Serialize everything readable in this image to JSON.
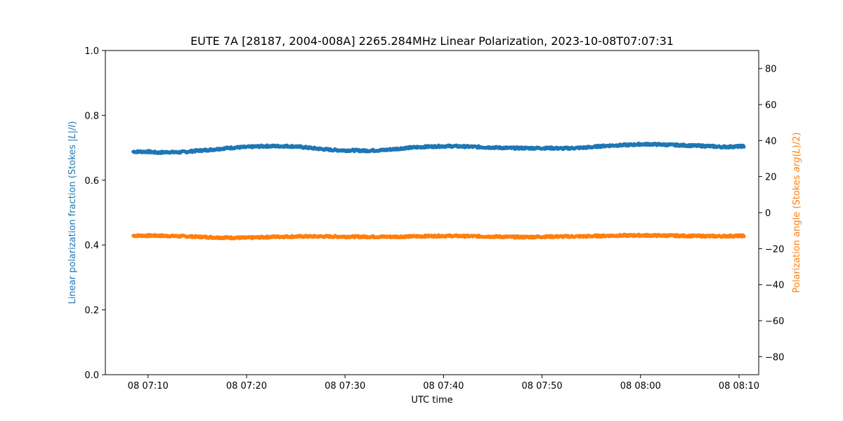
{
  "chart_data": {
    "type": "scatter",
    "title": "EUTE 7A [28187, 2004-008A] 2265.284MHz Linear Polarization, 2023-10-08T07:07:31",
    "xlabel": "UTC time",
    "ylabel_left": {
      "text": "Linear polarization fraction (Stokes |",
      "italic": "L",
      "suffix": "|/",
      "italic2": "I",
      "tail": ")"
    },
    "ylabel_right": {
      "text": "Polarization angle (Stokes ",
      "italic": "arg",
      "suffix": "(",
      "italic2": "L",
      "tail": ")/2)"
    },
    "x_range": [
      "2023-10-08T07:05:40",
      "2023-10-08T08:12:00"
    ],
    "x_ticks": [
      {
        "label": "08 07:10",
        "time": "2023-10-08T07:10:00"
      },
      {
        "label": "08 07:20",
        "time": "2023-10-08T07:20:00"
      },
      {
        "label": "08 07:30",
        "time": "2023-10-08T07:30:00"
      },
      {
        "label": "08 07:40",
        "time": "2023-10-08T07:40:00"
      },
      {
        "label": "08 07:50",
        "time": "2023-10-08T07:50:00"
      },
      {
        "label": "08 08:00",
        "time": "2023-10-08T08:00:00"
      },
      {
        "label": "08 08:10",
        "time": "2023-10-08T08:10:00"
      }
    ],
    "y_left_range": [
      0.0,
      1.0
    ],
    "y_left_ticks": [
      "0.0",
      "0.2",
      "0.4",
      "0.6",
      "0.8",
      "1.0"
    ],
    "y_right_range": [
      -90,
      90
    ],
    "y_right_ticks": [
      "−80",
      "−60",
      "−40",
      "−20",
      "0",
      "20",
      "40",
      "60",
      "80"
    ],
    "grid": false,
    "series": [
      {
        "axis": "left",
        "color": "#1f77b4",
        "points": [
          [
            "2023-10-08T07:08:30",
            0.688
          ],
          [
            "2023-10-08T07:10:00",
            0.688
          ],
          [
            "2023-10-08T07:11:00",
            0.685
          ],
          [
            "2023-10-08T07:12:00",
            0.687
          ],
          [
            "2023-10-08T07:13:00",
            0.686
          ],
          [
            "2023-10-08T07:14:00",
            0.688
          ],
          [
            "2023-10-08T07:15:00",
            0.691
          ],
          [
            "2023-10-08T07:16:00",
            0.693
          ],
          [
            "2023-10-08T07:17:00",
            0.696
          ],
          [
            "2023-10-08T07:18:00",
            0.699
          ],
          [
            "2023-10-08T07:19:00",
            0.701
          ],
          [
            "2023-10-08T07:20:00",
            0.702
          ],
          [
            "2023-10-08T07:21:00",
            0.704
          ],
          [
            "2023-10-08T07:22:00",
            0.705
          ],
          [
            "2023-10-08T07:23:00",
            0.705
          ],
          [
            "2023-10-08T07:24:00",
            0.705
          ],
          [
            "2023-10-08T07:25:00",
            0.704
          ],
          [
            "2023-10-08T07:26:00",
            0.701
          ],
          [
            "2023-10-08T07:27:00",
            0.698
          ],
          [
            "2023-10-08T07:28:00",
            0.695
          ],
          [
            "2023-10-08T07:29:00",
            0.693
          ],
          [
            "2023-10-08T07:30:00",
            0.692
          ],
          [
            "2023-10-08T07:31:00",
            0.692
          ],
          [
            "2023-10-08T07:32:00",
            0.691
          ],
          [
            "2023-10-08T07:33:00",
            0.692
          ],
          [
            "2023-10-08T07:34:00",
            0.693
          ],
          [
            "2023-10-08T07:35:00",
            0.696
          ],
          [
            "2023-10-08T07:36:00",
            0.699
          ],
          [
            "2023-10-08T07:37:00",
            0.701
          ],
          [
            "2023-10-08T07:38:00",
            0.703
          ],
          [
            "2023-10-08T07:39:00",
            0.704
          ],
          [
            "2023-10-08T07:40:00",
            0.705
          ],
          [
            "2023-10-08T07:41:00",
            0.705
          ],
          [
            "2023-10-08T07:42:00",
            0.704
          ],
          [
            "2023-10-08T07:43:00",
            0.703
          ],
          [
            "2023-10-08T07:44:00",
            0.702
          ],
          [
            "2023-10-08T07:45:00",
            0.701
          ],
          [
            "2023-10-08T07:46:00",
            0.7
          ],
          [
            "2023-10-08T07:47:00",
            0.699
          ],
          [
            "2023-10-08T07:48:00",
            0.699
          ],
          [
            "2023-10-08T07:49:00",
            0.699
          ],
          [
            "2023-10-08T07:50:00",
            0.699
          ],
          [
            "2023-10-08T07:51:00",
            0.699
          ],
          [
            "2023-10-08T07:52:00",
            0.698
          ],
          [
            "2023-10-08T07:53:00",
            0.699
          ],
          [
            "2023-10-08T07:54:00",
            0.7
          ],
          [
            "2023-10-08T07:55:00",
            0.702
          ],
          [
            "2023-10-08T07:56:00",
            0.705
          ],
          [
            "2023-10-08T07:57:00",
            0.707
          ],
          [
            "2023-10-08T07:58:00",
            0.708
          ],
          [
            "2023-10-08T07:59:00",
            0.709
          ],
          [
            "2023-10-08T08:00:00",
            0.711
          ],
          [
            "2023-10-08T08:01:00",
            0.711
          ],
          [
            "2023-10-08T08:02:00",
            0.71
          ],
          [
            "2023-10-08T08:03:00",
            0.709
          ],
          [
            "2023-10-08T08:04:00",
            0.708
          ],
          [
            "2023-10-08T08:05:00",
            0.707
          ],
          [
            "2023-10-08T08:06:00",
            0.706
          ],
          [
            "2023-10-08T08:07:00",
            0.705
          ],
          [
            "2023-10-08T08:08:00",
            0.703
          ],
          [
            "2023-10-08T08:09:00",
            0.703
          ],
          [
            "2023-10-08T08:10:30",
            0.705
          ]
        ]
      },
      {
        "axis": "right",
        "color": "#ff7f0e",
        "points": [
          [
            "2023-10-08T07:08:30",
            -12.8
          ],
          [
            "2023-10-08T07:11:00",
            -12.8
          ],
          [
            "2023-10-08T07:14:00",
            -13.2
          ],
          [
            "2023-10-08T07:17:00",
            -13.8
          ],
          [
            "2023-10-08T07:20:00",
            -14.0
          ],
          [
            "2023-10-08T07:23:00",
            -13.4
          ],
          [
            "2023-10-08T07:26:00",
            -13.2
          ],
          [
            "2023-10-08T07:29:00",
            -13.3
          ],
          [
            "2023-10-08T07:32:00",
            -13.4
          ],
          [
            "2023-10-08T07:35:00",
            -13.4
          ],
          [
            "2023-10-08T07:38:00",
            -13.1
          ],
          [
            "2023-10-08T07:40:00",
            -12.9
          ],
          [
            "2023-10-08T07:43:00",
            -13.1
          ],
          [
            "2023-10-08T07:46:00",
            -13.4
          ],
          [
            "2023-10-08T07:48:00",
            -13.6
          ],
          [
            "2023-10-08T07:51:00",
            -13.3
          ],
          [
            "2023-10-08T07:54:00",
            -13.2
          ],
          [
            "2023-10-08T07:57:00",
            -12.8
          ],
          [
            "2023-10-08T08:00:00",
            -12.6
          ],
          [
            "2023-10-08T08:03:00",
            -12.8
          ],
          [
            "2023-10-08T08:06:00",
            -13.0
          ],
          [
            "2023-10-08T08:08:00",
            -13.1
          ],
          [
            "2023-10-08T08:10:30",
            -12.9
          ]
        ]
      }
    ]
  }
}
